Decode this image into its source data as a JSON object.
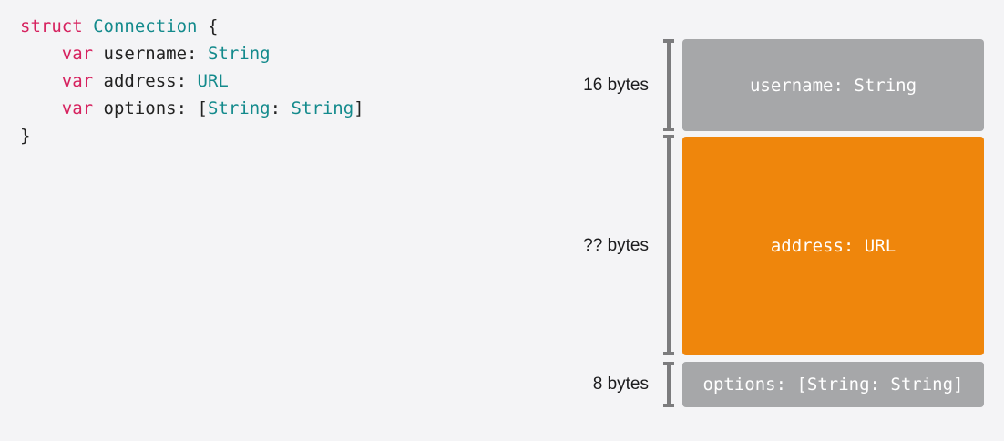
{
  "code": {
    "lines": [
      [
        "struct",
        "Connection",
        "{"
      ],
      [
        "var",
        "username:",
        "String"
      ],
      [
        "var",
        "address:",
        "URL"
      ],
      [
        "var",
        "options:",
        "[",
        "String",
        ":",
        "String",
        "]"
      ],
      [
        "}"
      ]
    ]
  },
  "layout": {
    "blocks": [
      {
        "size": "16 bytes",
        "label": "username: String"
      },
      {
        "size": "?? bytes",
        "label": "address: URL"
      },
      {
        "size": "8 bytes",
        "label": "options: [String: String]"
      }
    ]
  }
}
